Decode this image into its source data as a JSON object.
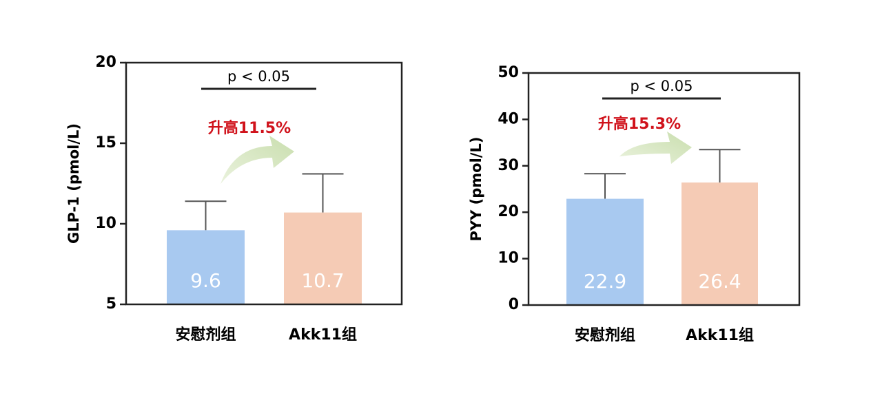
{
  "chart_data": [
    {
      "type": "bar",
      "ylabel": "GLP-1 (pmol/L)",
      "categories": [
        "安慰剂组",
        "Akk11组"
      ],
      "values": [
        9.6,
        10.7
      ],
      "errors": [
        1.8,
        2.4
      ],
      "colors": [
        "#a8c9f0",
        "#f5cbb5"
      ],
      "ylim": [
        5,
        20
      ],
      "yticks": [
        5,
        10,
        15,
        20
      ],
      "significance": "p < 0.05",
      "change_label": "升高11.5%"
    },
    {
      "type": "bar",
      "ylabel": "PYY (pmol/L)",
      "categories": [
        "安慰剂组",
        "Akk11组"
      ],
      "values": [
        22.9,
        26.4
      ],
      "errors": [
        5.4,
        7.1
      ],
      "colors": [
        "#a8c9f0",
        "#f5cbb5"
      ],
      "ylim": [
        0,
        50
      ],
      "yticks": [
        0,
        10,
        20,
        30,
        40,
        50
      ],
      "significance": "p < 0.05",
      "change_label": "升高15.3%"
    }
  ]
}
